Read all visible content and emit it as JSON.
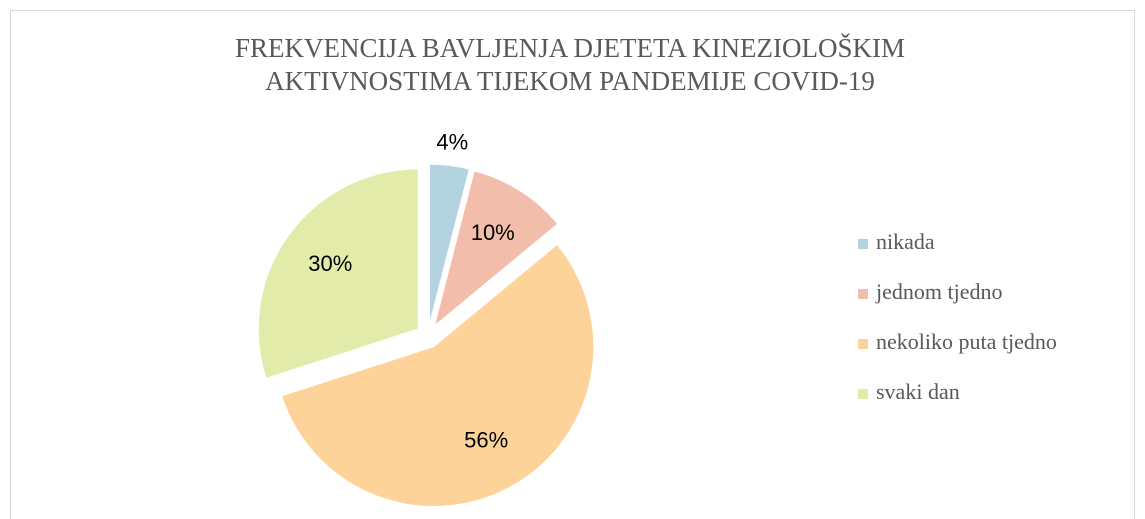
{
  "chart_data": {
    "type": "pie",
    "title": "FREKVENCIJA BAVLJENJA DJETETA KINEZIOLOŠKIM AKTIVNOSTIMA TIJEKOM PANDEMIJE COVID-19",
    "categories": [
      "nikada",
      "jednom tjedno",
      "nekoliko puta tjedno",
      "svaki dan"
    ],
    "values": [
      4,
      10,
      56,
      30
    ],
    "value_labels": [
      "4%",
      "10%",
      "56%",
      "30%"
    ],
    "colors": [
      "#b4d3e0",
      "#f2bdaa",
      "#fdd39a",
      "#e3ebab"
    ],
    "legend": "right"
  }
}
